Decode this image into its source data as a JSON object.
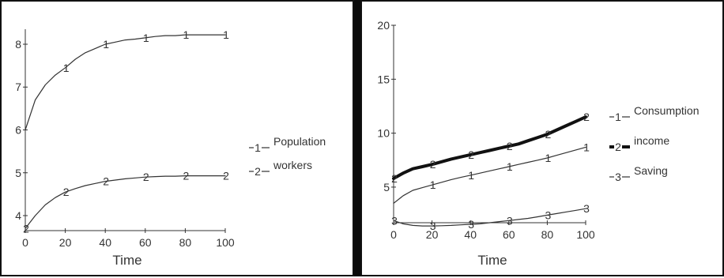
{
  "charts": [
    {
      "type": "line",
      "xlabel": "Time",
      "x_ticks": [
        0,
        20,
        40,
        60,
        80,
        100
      ],
      "y_ticks": [
        4,
        5,
        6,
        7,
        8
      ],
      "xlim": [
        0,
        100
      ],
      "ylim": [
        3.65,
        8.35
      ],
      "legend_position": "right",
      "series": [
        {
          "name": "Population",
          "marker": "1",
          "x": [
            0,
            5,
            10,
            15,
            20,
            25,
            30,
            35,
            40,
            45,
            50,
            55,
            60,
            65,
            70,
            75,
            80,
            85,
            90,
            95,
            100
          ],
          "y": [
            6.0,
            6.7,
            7.05,
            7.28,
            7.45,
            7.65,
            7.8,
            7.9,
            8.0,
            8.05,
            8.1,
            8.12,
            8.15,
            8.18,
            8.2,
            8.2,
            8.22,
            8.22,
            8.22,
            8.22,
            8.22
          ],
          "marker_x": [
            20,
            40,
            60,
            80,
            100
          ],
          "color": "#333333",
          "stroke_width": 1.2
        },
        {
          "name": "workers",
          "marker": "2",
          "x": [
            0,
            5,
            10,
            15,
            20,
            25,
            30,
            35,
            40,
            45,
            50,
            55,
            60,
            65,
            70,
            75,
            80,
            85,
            90,
            95,
            100
          ],
          "y": [
            3.7,
            4.0,
            4.25,
            4.42,
            4.55,
            4.63,
            4.7,
            4.75,
            4.8,
            4.83,
            4.86,
            4.88,
            4.9,
            4.91,
            4.92,
            4.92,
            4.93,
            4.93,
            4.93,
            4.93,
            4.93
          ],
          "marker_x": [
            0,
            20,
            40,
            60,
            80,
            100
          ],
          "color": "#333333",
          "stroke_width": 1.2
        }
      ]
    },
    {
      "type": "line",
      "xlabel": "Time",
      "x_ticks": [
        0,
        20,
        40,
        60,
        80,
        100
      ],
      "y_ticks": [
        5,
        10,
        15,
        20
      ],
      "xlim": [
        0,
        100
      ],
      "ylim": [
        1.7,
        20
      ],
      "legend_position": "right",
      "series": [
        {
          "name": "Consumption",
          "marker": "1",
          "x": [
            0,
            5,
            10,
            15,
            20,
            25,
            30,
            35,
            40,
            45,
            50,
            55,
            60,
            65,
            70,
            75,
            80,
            85,
            90,
            95,
            100
          ],
          "y": [
            3.5,
            4.2,
            4.7,
            4.95,
            5.2,
            5.45,
            5.7,
            5.9,
            6.1,
            6.3,
            6.5,
            6.7,
            6.9,
            7.1,
            7.3,
            7.5,
            7.7,
            7.95,
            8.2,
            8.45,
            8.7
          ],
          "marker_x": [
            20,
            40,
            60,
            80,
            100
          ],
          "color": "#333333",
          "stroke_width": 1.2
        },
        {
          "name": "income",
          "marker": "2",
          "x": [
            0,
            5,
            10,
            15,
            20,
            25,
            30,
            35,
            40,
            45,
            50,
            55,
            60,
            65,
            70,
            75,
            80,
            85,
            90,
            95,
            100
          ],
          "y": [
            5.8,
            6.3,
            6.7,
            6.9,
            7.1,
            7.35,
            7.6,
            7.8,
            8.0,
            8.2,
            8.4,
            8.6,
            8.8,
            9.0,
            9.3,
            9.6,
            9.9,
            10.3,
            10.7,
            11.1,
            11.5
          ],
          "marker_x": [
            0,
            20,
            40,
            60,
            80,
            100
          ],
          "color": "#111111",
          "stroke_width": 4
        },
        {
          "name": "Saving",
          "marker": "3",
          "x": [
            0,
            5,
            10,
            15,
            20,
            25,
            30,
            35,
            40,
            45,
            50,
            55,
            60,
            65,
            70,
            75,
            80,
            85,
            90,
            95,
            100
          ],
          "y": [
            1.9,
            1.6,
            1.45,
            1.4,
            1.4,
            1.42,
            1.45,
            1.5,
            1.55,
            1.6,
            1.7,
            1.8,
            1.9,
            2.0,
            2.1,
            2.25,
            2.4,
            2.55,
            2.7,
            2.85,
            3.0
          ],
          "marker_x": [
            0,
            20,
            40,
            60,
            80,
            100
          ],
          "color": "#333333",
          "stroke_width": 1.2
        }
      ]
    }
  ]
}
